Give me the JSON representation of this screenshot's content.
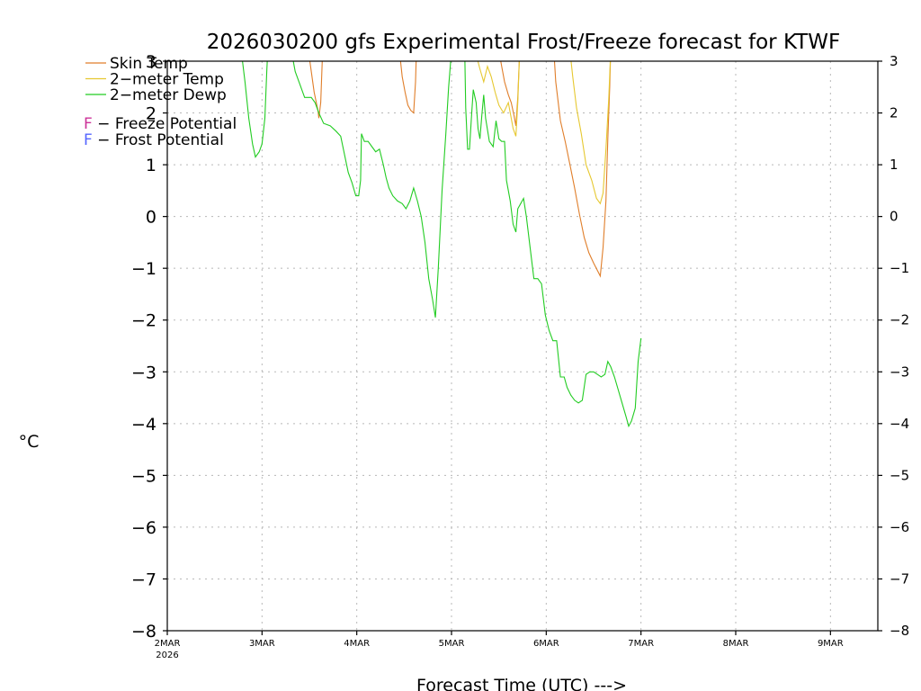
{
  "chart_data": {
    "type": "line",
    "title": "2026030200 gfs Experimental Frost/Freeze forecast for KTWF",
    "xlabel": "Forecast Time (UTC) --->",
    "ylabel": "°C",
    "xlim": [
      0,
      7.5
    ],
    "ylim": [
      -8,
      3
    ],
    "x_ticks": [
      {
        "x": 0,
        "label": "2MAR",
        "sublabel": "2026"
      },
      {
        "x": 1,
        "label": "3MAR",
        "sublabel": ""
      },
      {
        "x": 2,
        "label": "4MAR",
        "sublabel": ""
      },
      {
        "x": 3,
        "label": "5MAR",
        "sublabel": ""
      },
      {
        "x": 4,
        "label": "6MAR",
        "sublabel": ""
      },
      {
        "x": 5,
        "label": "7MAR",
        "sublabel": ""
      },
      {
        "x": 6,
        "label": "8MAR",
        "sublabel": ""
      },
      {
        "x": 7,
        "label": "9MAR",
        "sublabel": ""
      }
    ],
    "y_ticks": [
      {
        "y": 3,
        "label": "3"
      },
      {
        "y": 2,
        "label": "2"
      },
      {
        "y": 1,
        "label": "1"
      },
      {
        "y": 0,
        "label": "0"
      },
      {
        "y": -1,
        "label": "−1"
      },
      {
        "y": -2,
        "label": "−2"
      },
      {
        "y": -3,
        "label": "−3"
      },
      {
        "y": -4,
        "label": "−4"
      },
      {
        "y": -5,
        "label": "−5"
      },
      {
        "y": -6,
        "label": "−6"
      },
      {
        "y": -7,
        "label": "−7"
      },
      {
        "y": -8,
        "label": "−8"
      }
    ],
    "grid": true,
    "legend": [
      {
        "name": "Skin Temp",
        "color": "#e07e2a"
      },
      {
        "name": "2−meter Temp",
        "color": "#e6c830"
      },
      {
        "name": "2−meter Dewp",
        "color": "#22cc22"
      }
    ],
    "legend_notes": [
      {
        "letter": "F",
        "letter_color": "#cc3399",
        "text": " − Freeze Potential"
      },
      {
        "letter": "F",
        "letter_color": "#5566ff",
        "text": " − Frost Potential"
      }
    ],
    "series": [
      {
        "name": "Skin Temp",
        "color": "#e07e2a",
        "segments": [
          [
            [
              1.49,
              3.2
            ],
            [
              1.52,
              2.8
            ],
            [
              1.55,
              2.4
            ],
            [
              1.59,
              2.05
            ],
            [
              1.6,
              1.9
            ],
            [
              1.62,
              2.2
            ],
            [
              1.64,
              3.2
            ]
          ],
          [
            [
              2.45,
              3.2
            ],
            [
              2.48,
              2.7
            ],
            [
              2.51,
              2.4
            ],
            [
              2.54,
              2.15
            ],
            [
              2.57,
              2.05
            ],
            [
              2.6,
              2.0
            ],
            [
              2.62,
              2.6
            ],
            [
              2.63,
              3.2
            ]
          ],
          [
            [
              3.5,
              3.2
            ],
            [
              3.53,
              2.9
            ],
            [
              3.56,
              2.6
            ],
            [
              3.6,
              2.35
            ],
            [
              3.63,
              2.2
            ],
            [
              3.66,
              1.95
            ],
            [
              3.68,
              1.75
            ],
            [
              3.7,
              2.3
            ],
            [
              3.72,
              3.2
            ]
          ],
          [
            [
              4.08,
              3.2
            ],
            [
              4.1,
              2.6
            ],
            [
              4.15,
              1.85
            ],
            [
              4.2,
              1.45
            ],
            [
              4.25,
              1.0
            ],
            [
              4.3,
              0.55
            ],
            [
              4.35,
              0.05
            ],
            [
              4.4,
              -0.4
            ],
            [
              4.45,
              -0.7
            ],
            [
              4.5,
              -0.9
            ],
            [
              4.57,
              -1.15
            ],
            [
              4.6,
              -0.6
            ],
            [
              4.63,
              0.3
            ],
            [
              4.65,
              1.5
            ],
            [
              4.67,
              2.5
            ],
            [
              4.68,
              3.2
            ]
          ]
        ]
      },
      {
        "name": "2-meter Temp",
        "color": "#e6c830",
        "segments": [
          [
            [
              3.25,
              3.2
            ],
            [
              3.3,
              2.85
            ],
            [
              3.34,
              2.6
            ],
            [
              3.38,
              2.9
            ],
            [
              3.42,
              2.7
            ],
            [
              3.46,
              2.4
            ],
            [
              3.5,
              2.15
            ],
            [
              3.55,
              2.0
            ],
            [
              3.6,
              2.2
            ],
            [
              3.65,
              1.7
            ],
            [
              3.68,
              1.55
            ],
            [
              3.7,
              2.2
            ],
            [
              3.72,
              3.2
            ]
          ],
          [
            [
              4.25,
              3.2
            ],
            [
              4.28,
              2.7
            ],
            [
              4.32,
              2.1
            ],
            [
              4.37,
              1.6
            ],
            [
              4.42,
              1.0
            ],
            [
              4.48,
              0.7
            ],
            [
              4.53,
              0.35
            ],
            [
              4.57,
              0.25
            ],
            [
              4.6,
              0.45
            ],
            [
              4.63,
              1.3
            ],
            [
              4.66,
              2.3
            ],
            [
              4.68,
              3.2
            ]
          ]
        ]
      },
      {
        "name": "2-meter Dewp",
        "color": "#22cc22",
        "segments": [
          [
            [
              0.78,
              3.2
            ],
            [
              0.82,
              2.6
            ],
            [
              0.86,
              1.9
            ],
            [
              0.9,
              1.4
            ],
            [
              0.93,
              1.15
            ],
            [
              0.97,
              1.25
            ],
            [
              1.0,
              1.4
            ],
            [
              1.03,
              1.9
            ],
            [
              1.05,
              2.8
            ],
            [
              1.06,
              3.2
            ]
          ],
          [
            [
              1.31,
              3.2
            ],
            [
              1.35,
              2.8
            ],
            [
              1.4,
              2.55
            ],
            [
              1.45,
              2.3
            ],
            [
              1.52,
              2.3
            ],
            [
              1.56,
              2.2
            ],
            [
              1.6,
              2.0
            ],
            [
              1.65,
              1.8
            ],
            [
              1.72,
              1.75
            ],
            [
              1.78,
              1.65
            ],
            [
              1.83,
              1.55
            ],
            [
              1.87,
              1.2
            ],
            [
              1.91,
              0.85
            ],
            [
              1.95,
              0.65
            ],
            [
              1.99,
              0.4
            ],
            [
              2.02,
              0.4
            ],
            [
              2.04,
              0.7
            ],
            [
              2.05,
              1.6
            ],
            [
              2.08,
              1.45
            ],
            [
              2.12,
              1.45
            ],
            [
              2.16,
              1.35
            ],
            [
              2.2,
              1.25
            ],
            [
              2.24,
              1.3
            ],
            [
              2.28,
              1.0
            ],
            [
              2.31,
              0.75
            ],
            [
              2.34,
              0.55
            ],
            [
              2.38,
              0.4
            ],
            [
              2.43,
              0.3
            ],
            [
              2.48,
              0.25
            ],
            [
              2.52,
              0.15
            ],
            [
              2.56,
              0.3
            ],
            [
              2.6,
              0.55
            ],
            [
              2.64,
              0.3
            ],
            [
              2.68,
              0.0
            ],
            [
              2.72,
              -0.5
            ],
            [
              2.76,
              -1.2
            ],
            [
              2.8,
              -1.6
            ],
            [
              2.83,
              -1.95
            ],
            [
              2.86,
              -1.0
            ],
            [
              2.9,
              0.5
            ],
            [
              2.94,
              1.6
            ],
            [
              2.97,
              2.5
            ],
            [
              3.0,
              3.2
            ]
          ],
          [
            [
              3.14,
              3.2
            ],
            [
              3.15,
              2.1
            ],
            [
              3.17,
              1.3
            ],
            [
              3.19,
              1.3
            ],
            [
              3.21,
              1.9
            ],
            [
              3.23,
              2.45
            ],
            [
              3.26,
              2.2
            ],
            [
              3.28,
              1.7
            ],
            [
              3.3,
              1.5
            ],
            [
              3.32,
              1.95
            ],
            [
              3.34,
              2.35
            ],
            [
              3.36,
              1.9
            ],
            [
              3.4,
              1.45
            ],
            [
              3.44,
              1.35
            ],
            [
              3.47,
              1.85
            ],
            [
              3.5,
              1.5
            ],
            [
              3.53,
              1.45
            ],
            [
              3.56,
              1.45
            ],
            [
              3.58,
              0.7
            ],
            [
              3.62,
              0.3
            ],
            [
              3.65,
              -0.15
            ],
            [
              3.68,
              -0.3
            ],
            [
              3.7,
              0.15
            ],
            [
              3.73,
              0.25
            ],
            [
              3.76,
              0.35
            ],
            [
              3.79,
              0.0
            ],
            [
              3.83,
              -0.6
            ],
            [
              3.87,
              -1.2
            ],
            [
              3.91,
              -1.2
            ],
            [
              3.95,
              -1.3
            ],
            [
              3.99,
              -1.9
            ],
            [
              4.03,
              -2.2
            ],
            [
              4.07,
              -2.4
            ],
            [
              4.11,
              -2.4
            ],
            [
              4.15,
              -3.1
            ],
            [
              4.19,
              -3.1
            ],
            [
              4.22,
              -3.3
            ],
            [
              4.26,
              -3.45
            ],
            [
              4.3,
              -3.55
            ],
            [
              4.34,
              -3.6
            ],
            [
              4.38,
              -3.55
            ],
            [
              4.42,
              -3.05
            ],
            [
              4.46,
              -3.0
            ],
            [
              4.5,
              -3.0
            ],
            [
              4.54,
              -3.05
            ],
            [
              4.58,
              -3.1
            ],
            [
              4.62,
              -3.05
            ],
            [
              4.65,
              -2.8
            ],
            [
              4.68,
              -2.9
            ],
            [
              4.72,
              -3.1
            ],
            [
              4.76,
              -3.35
            ],
            [
              4.8,
              -3.6
            ],
            [
              4.84,
              -3.85
            ],
            [
              4.87,
              -4.05
            ],
            [
              4.9,
              -3.95
            ],
            [
              4.94,
              -3.7
            ],
            [
              4.97,
              -2.8
            ],
            [
              5.0,
              -2.35
            ]
          ]
        ]
      }
    ]
  }
}
